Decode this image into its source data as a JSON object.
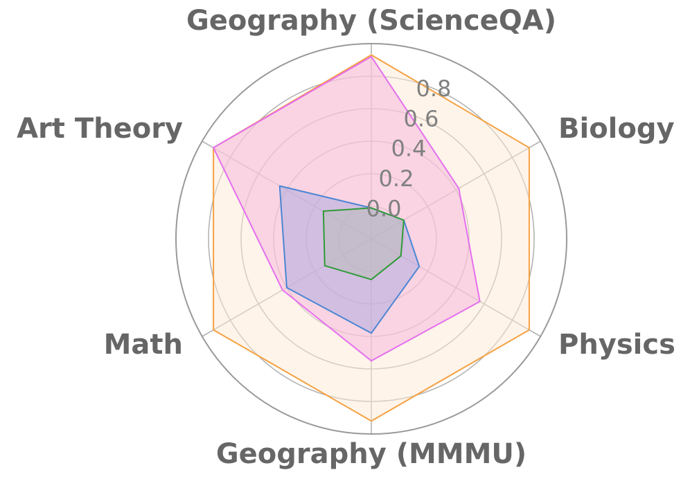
{
  "chart_data": {
    "type": "radar",
    "axes": [
      "Geography (ScienceQA)",
      "Biology",
      "Physics",
      "Geography (MMMU)",
      "Math",
      "Art Theory"
    ],
    "r_ticks": [
      0.0,
      0.2,
      0.4,
      0.6,
      0.8
    ],
    "r_tick_labels": [
      "0.0",
      "0.2",
      "0.4",
      "0.6",
      "0.8"
    ],
    "r_range": [
      -0.2,
      1.0
    ],
    "grid": true,
    "series": [
      {
        "color": "#f5a142",
        "fill": "#fde9d4",
        "values": [
          0.93,
          0.92,
          0.92,
          0.92,
          0.92,
          0.92
        ]
      },
      {
        "color": "#e56ef0",
        "fill": "#f6b3dc",
        "values": [
          0.92,
          0.42,
          0.57,
          0.55,
          0.43,
          0.92
        ]
      },
      {
        "color": "#4a86d4",
        "fill": "#a9a7e0",
        "values": [
          -0.01,
          0.03,
          0.14,
          0.38,
          0.4,
          0.45
        ]
      },
      {
        "color": "#2e9b36",
        "fill": "#b7bbb8",
        "values": [
          -0.01,
          0.03,
          0.01,
          0.05,
          0.13,
          0.14
        ]
      }
    ]
  }
}
